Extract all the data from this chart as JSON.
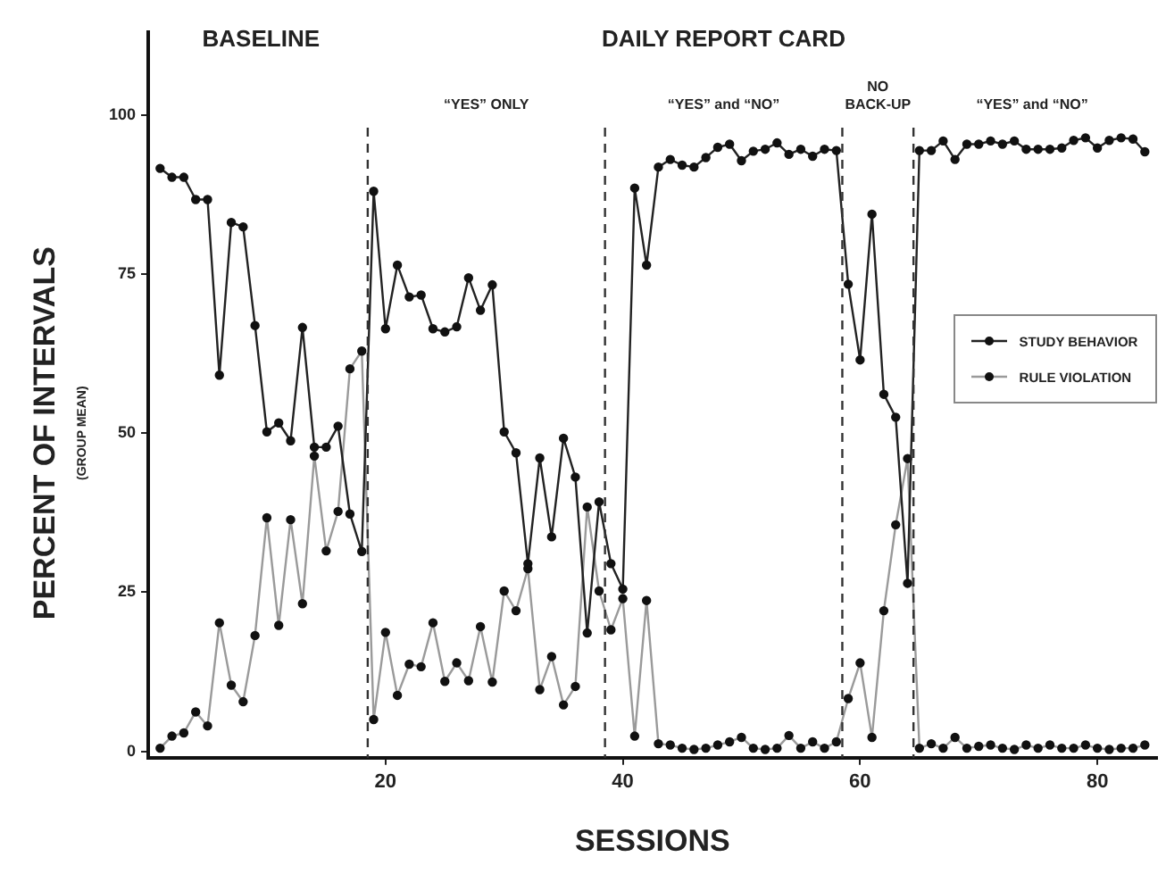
{
  "chart_data": {
    "type": "line",
    "xlabel": "SESSIONS",
    "ylabel": "PERCENT OF INTERVALS",
    "x": [
      1,
      2,
      3,
      4,
      5,
      6,
      7,
      8,
      9,
      10,
      11,
      12,
      13,
      14,
      15,
      16,
      17,
      18,
      19,
      20,
      21,
      22,
      23,
      24,
      25,
      26,
      27,
      28,
      29,
      30,
      31,
      32,
      33,
      34,
      35,
      36,
      37,
      38,
      39,
      40,
      41,
      42,
      43,
      44,
      45,
      46,
      47,
      48,
      49,
      50,
      51,
      52,
      53,
      54,
      55,
      56,
      57,
      58,
      59,
      60,
      61,
      62,
      63,
      64,
      65,
      66,
      67,
      68,
      69,
      70,
      71,
      72,
      73,
      74,
      75,
      76,
      77,
      78,
      79,
      80,
      81,
      82,
      83,
      84
    ],
    "series": [
      {
        "name": "STUDY BEHAVIOR",
        "color": "#222222",
        "values": [
          91.6,
          90.2,
          90.2,
          86.7,
          86.7,
          59.1,
          83.1,
          82.4,
          66.9,
          50.2,
          51.6,
          48.8,
          66.6,
          47.8,
          47.8,
          51.1,
          37.3,
          31.4,
          88.0,
          66.4,
          76.4,
          71.4,
          71.7,
          66.4,
          65.9,
          66.7,
          74.4,
          69.3,
          73.3,
          50.2,
          46.9,
          29.5,
          46.1,
          33.7,
          49.2,
          43.1,
          18.6,
          39.2,
          29.5,
          25.5,
          88.5,
          76.4,
          91.8,
          93.0,
          92.1,
          91.8,
          93.3,
          94.9,
          95.4,
          92.8,
          94.3,
          94.6,
          95.6,
          93.8,
          94.6,
          93.5,
          94.6,
          94.4,
          73.4,
          61.5,
          84.4,
          56.1,
          52.5,
          26.4,
          94.4,
          94.4,
          95.9,
          93.0,
          95.4,
          95.4,
          95.9,
          95.4,
          95.9,
          94.6,
          94.6,
          94.6,
          94.8,
          96.0,
          96.4,
          94.8,
          96.0,
          96.4,
          96.2,
          94.2
        ]
      },
      {
        "name": "RULE VIOLATION",
        "color": "#9a9a9a",
        "values": [
          0.5,
          2.4,
          2.9,
          6.2,
          4.0,
          20.2,
          10.4,
          7.8,
          18.2,
          36.7,
          19.8,
          36.4,
          23.2,
          46.4,
          31.5,
          37.7,
          60.1,
          62.9,
          5.0,
          18.7,
          8.8,
          13.7,
          13.3,
          20.2,
          11.0,
          13.9,
          11.1,
          19.6,
          10.9,
          25.2,
          22.1,
          28.7,
          9.7,
          14.9,
          7.3,
          10.2,
          38.4,
          25.2,
          19.1,
          24.0,
          2.4,
          23.7,
          1.2,
          1.0,
          0.5,
          0.3,
          0.5,
          1.0,
          1.5,
          2.2,
          0.5,
          0.3,
          0.5,
          2.5,
          0.5,
          1.5,
          0.5,
          1.5,
          8.3,
          13.9,
          2.2,
          22.1,
          35.6,
          46.0,
          0.5,
          1.2,
          0.5,
          2.2,
          0.5,
          0.8,
          1.0,
          0.5,
          0.3,
          1.0,
          0.5,
          1.0,
          0.5,
          0.5,
          1.0,
          0.5,
          0.3,
          0.5,
          0.5,
          1.0
        ]
      }
    ],
    "xlim": [
      0,
      85
    ],
    "xticks": [
      20,
      40,
      60,
      80
    ],
    "ylim": [
      -1,
      113
    ],
    "yticks": [
      0,
      25,
      50,
      75,
      100
    ],
    "ref_lines": [
      {
        "axis": "x",
        "value": 18.5,
        "line_style": "dashed",
        "color": "#333333"
      },
      {
        "axis": "x",
        "value": 38.5,
        "line_style": "dashed",
        "color": "#333333"
      },
      {
        "axis": "x",
        "value": 58.5,
        "line_style": "dashed",
        "color": "#333333"
      },
      {
        "axis": "x",
        "value": 64.5,
        "line_style": "dashed",
        "color": "#333333"
      }
    ],
    "annotations": [
      "(GROUP MEAN)",
      "BASELINE",
      "DAILY REPORT CARD",
      "“YES” ONLY",
      "“YES” and “NO”",
      "NO\nBACK-UP",
      "“YES” and “NO”"
    ],
    "legend": "right",
    "marker": "circle",
    "line_style": "solid",
    "grid": false
  }
}
